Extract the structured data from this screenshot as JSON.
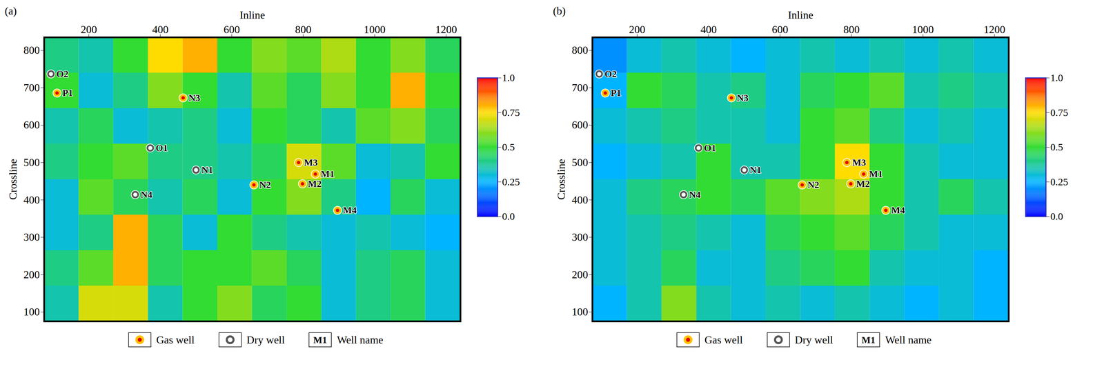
{
  "chart_data": [
    {
      "type": "heatmap",
      "title": "(a)",
      "x_label": "Inline",
      "y_label": "Crossline",
      "xlim": [
        75,
        1240
      ],
      "ylim": [
        75,
        835
      ],
      "xticks": [
        200,
        400,
        600,
        800,
        1000,
        1200
      ],
      "yticks": [
        100,
        200,
        300,
        400,
        500,
        600,
        700,
        800
      ],
      "x_edges": [
        75,
        172,
        269,
        366,
        463,
        560,
        657,
        754,
        851,
        948,
        1045,
        1142,
        1240
      ],
      "y_edges": [
        75,
        170,
        265,
        360,
        455,
        550,
        645,
        740,
        835
      ],
      "values": [
        [
          0.35,
          0.7,
          0.7,
          0.35,
          0.5,
          0.6,
          0.45,
          0.5,
          0.3,
          0.4,
          0.45,
          0.3
        ],
        [
          0.4,
          0.55,
          0.8,
          0.45,
          0.5,
          0.5,
          0.55,
          0.45,
          0.3,
          0.4,
          0.45,
          0.3
        ],
        [
          0.3,
          0.4,
          0.8,
          0.45,
          0.3,
          0.5,
          0.4,
          0.35,
          0.3,
          0.35,
          0.3,
          0.25
        ],
        [
          0.3,
          0.55,
          0.45,
          0.35,
          0.45,
          0.3,
          0.5,
          0.6,
          0.4,
          0.25,
          0.45,
          0.3
        ],
        [
          0.4,
          0.5,
          0.55,
          0.4,
          0.4,
          0.35,
          0.45,
          0.7,
          0.55,
          0.3,
          0.35,
          0.5
        ],
        [
          0.35,
          0.45,
          0.3,
          0.35,
          0.4,
          0.3,
          0.5,
          0.45,
          0.35,
          0.55,
          0.6,
          0.45
        ],
        [
          0.5,
          0.3,
          0.4,
          0.6,
          0.5,
          0.35,
          0.55,
          0.45,
          0.6,
          0.5,
          0.8,
          0.5
        ],
        [
          0.4,
          0.35,
          0.5,
          0.75,
          0.8,
          0.5,
          0.6,
          0.55,
          0.65,
          0.5,
          0.6,
          0.45
        ]
      ],
      "colorbar": {
        "clim": [
          0,
          1
        ],
        "ticks": [
          {
            "value": 0,
            "label": "0.0"
          },
          0.25,
          0.5,
          0.75,
          {
            "value": 1,
            "label": "1.0"
          }
        ],
        "colors": [
          "#0000ff",
          "#00b4ff",
          "#32dc32",
          "#ffdc00",
          "#ff0000"
        ]
      },
      "wells": [
        {
          "name": "O2",
          "inline": 94,
          "crossline": 737,
          "type": "dry"
        },
        {
          "name": "P1",
          "inline": 111,
          "crossline": 686,
          "type": "gas"
        },
        {
          "name": "N3",
          "inline": 464,
          "crossline": 673,
          "type": "gas"
        },
        {
          "name": "O1",
          "inline": 372,
          "crossline": 539,
          "type": "dry"
        },
        {
          "name": "N1",
          "inline": 500,
          "crossline": 480,
          "type": "dry"
        },
        {
          "name": "N2",
          "inline": 662,
          "crossline": 440,
          "type": "gas"
        },
        {
          "name": "M3",
          "inline": 787,
          "crossline": 500,
          "type": "gas"
        },
        {
          "name": "M1",
          "inline": 834,
          "crossline": 469,
          "type": "gas"
        },
        {
          "name": "M2",
          "inline": 798,
          "crossline": 443,
          "type": "gas"
        },
        {
          "name": "M4",
          "inline": 896,
          "crossline": 372,
          "type": "gas"
        },
        {
          "name": "N4",
          "inline": 330,
          "crossline": 414,
          "type": "dry"
        }
      ],
      "legend_items": [
        {
          "type": "gas",
          "label": "Gas well"
        },
        {
          "type": "dry",
          "label": "Dry well"
        },
        {
          "type": "name",
          "label": "Well name",
          "example": "M1"
        }
      ]
    },
    {
      "type": "heatmap",
      "title": "(b)",
      "x_label": "Inline",
      "y_label": "Crossline",
      "xlim": [
        75,
        1240
      ],
      "ylim": [
        75,
        835
      ],
      "xticks": [
        200,
        400,
        600,
        800,
        1000,
        1200
      ],
      "yticks": [
        100,
        200,
        300,
        400,
        500,
        600,
        700,
        800
      ],
      "x_edges": [
        75,
        172,
        269,
        366,
        463,
        560,
        657,
        754,
        851,
        948,
        1045,
        1142,
        1240
      ],
      "y_edges": [
        75,
        170,
        265,
        360,
        455,
        550,
        645,
        740,
        835
      ],
      "values": [
        [
          0.25,
          0.35,
          0.6,
          0.35,
          0.3,
          0.35,
          0.3,
          0.35,
          0.3,
          0.25,
          0.3,
          0.25
        ],
        [
          0.3,
          0.35,
          0.45,
          0.3,
          0.3,
          0.4,
          0.45,
          0.5,
          0.35,
          0.3,
          0.3,
          0.25
        ],
        [
          0.3,
          0.35,
          0.4,
          0.35,
          0.3,
          0.45,
          0.5,
          0.55,
          0.45,
          0.35,
          0.3,
          0.3
        ],
        [
          0.3,
          0.4,
          0.45,
          0.5,
          0.45,
          0.55,
          0.6,
          0.65,
          0.5,
          0.35,
          0.45,
          0.35
        ],
        [
          0.25,
          0.3,
          0.35,
          0.5,
          0.35,
          0.35,
          0.5,
          0.75,
          0.5,
          0.35,
          0.3,
          0.3
        ],
        [
          0.3,
          0.35,
          0.4,
          0.35,
          0.35,
          0.3,
          0.5,
          0.55,
          0.4,
          0.3,
          0.35,
          0.3
        ],
        [
          0.25,
          0.5,
          0.45,
          0.35,
          0.4,
          0.3,
          0.45,
          0.5,
          0.55,
          0.35,
          0.4,
          0.35
        ],
        [
          0.2,
          0.3,
          0.35,
          0.3,
          0.25,
          0.3,
          0.35,
          0.3,
          0.35,
          0.3,
          0.35,
          0.3
        ]
      ],
      "colorbar": {
        "clim": [
          0,
          1
        ],
        "ticks": [
          {
            "value": 0,
            "label": "0.0"
          },
          0.25,
          0.5,
          0.75,
          {
            "value": 1,
            "label": "1.0"
          }
        ],
        "colors": [
          "#0000ff",
          "#00b4ff",
          "#32dc32",
          "#ffdc00",
          "#ff0000"
        ]
      },
      "wells": [
        {
          "name": "O2",
          "inline": 94,
          "crossline": 737,
          "type": "dry"
        },
        {
          "name": "P1",
          "inline": 111,
          "crossline": 686,
          "type": "gas"
        },
        {
          "name": "N3",
          "inline": 464,
          "crossline": 673,
          "type": "gas"
        },
        {
          "name": "O1",
          "inline": 372,
          "crossline": 539,
          "type": "dry"
        },
        {
          "name": "N1",
          "inline": 500,
          "crossline": 480,
          "type": "dry"
        },
        {
          "name": "N2",
          "inline": 662,
          "crossline": 440,
          "type": "gas"
        },
        {
          "name": "M3",
          "inline": 787,
          "crossline": 500,
          "type": "gas"
        },
        {
          "name": "M1",
          "inline": 834,
          "crossline": 469,
          "type": "gas"
        },
        {
          "name": "M2",
          "inline": 798,
          "crossline": 443,
          "type": "gas"
        },
        {
          "name": "M4",
          "inline": 896,
          "crossline": 372,
          "type": "gas"
        },
        {
          "name": "N4",
          "inline": 330,
          "crossline": 414,
          "type": "dry"
        }
      ],
      "legend_items": [
        {
          "type": "gas",
          "label": "Gas well"
        },
        {
          "type": "dry",
          "label": "Dry well"
        },
        {
          "type": "name",
          "label": "Well name",
          "example": "M1"
        }
      ]
    }
  ]
}
